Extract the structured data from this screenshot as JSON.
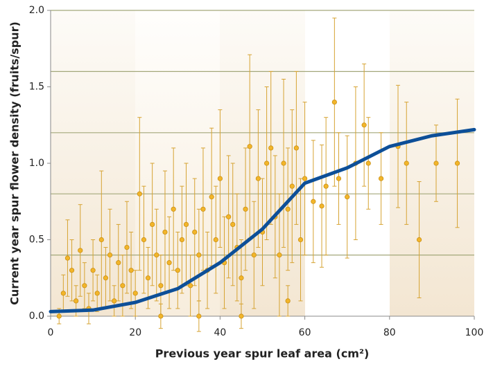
{
  "chart_data": {
    "type": "scatter",
    "xlabel": "Previous year spur leaf area (cm²)",
    "ylabel": "Current year spur flower density (fruits/spur)",
    "xlim": [
      0,
      100
    ],
    "ylim": [
      0,
      2
    ],
    "xticks": [
      0,
      20,
      40,
      60,
      80,
      100
    ],
    "yticks": [
      {
        "value": 0,
        "label": "0.0"
      },
      0.5,
      {
        "value": 1,
        "label": "1.0"
      },
      1.5,
      {
        "value": 2,
        "label": "2.0"
      }
    ],
    "gridlines": [
      0.4,
      0.8,
      1.2,
      1.6,
      2
    ],
    "series": [
      {
        "color": "#f2b52a",
        "x": [
          2,
          3,
          4,
          5,
          6,
          7,
          8,
          9,
          10,
          11,
          12,
          13,
          14,
          15,
          16,
          17,
          18,
          19,
          20,
          21,
          22,
          23,
          24,
          25,
          26,
          26,
          27,
          28,
          29,
          30,
          31,
          32,
          33,
          34,
          35,
          35,
          36,
          37,
          38,
          39,
          40,
          41,
          42,
          43,
          44,
          45,
          45,
          46,
          47,
          48,
          49,
          50,
          51,
          52,
          53,
          54,
          55,
          56,
          56,
          57,
          58,
          59,
          60,
          62,
          64,
          65,
          67,
          68,
          70,
          72,
          74,
          75,
          78,
          82,
          84,
          87,
          91,
          96
        ],
        "values": [
          0.0,
          0.15,
          0.38,
          0.3,
          0.1,
          0.43,
          0.2,
          0.05,
          0.3,
          0.15,
          0.5,
          0.25,
          0.4,
          0.1,
          0.35,
          0.2,
          0.45,
          0.3,
          0.15,
          0.8,
          0.5,
          0.25,
          0.6,
          0.4,
          0.2,
          0.0,
          0.55,
          0.35,
          0.7,
          0.3,
          0.5,
          0.6,
          0.2,
          0.55,
          0.4,
          0.0,
          0.7,
          0.3,
          0.78,
          0.5,
          0.9,
          0.35,
          0.65,
          0.6,
          0.45,
          0.25,
          0.0,
          0.7,
          1.11,
          0.4,
          0.9,
          0.55,
          1.0,
          1.1,
          0.65,
          0.4,
          1.0,
          0.7,
          0.1,
          0.85,
          1.1,
          0.5,
          0.9,
          0.75,
          0.72,
          0.85,
          1.4,
          0.9,
          0.78,
          1.0,
          1.25,
          1.0,
          0.9,
          1.11,
          1.0,
          0.5,
          1.0,
          1.0
        ],
        "errors": [
          0.05,
          0.12,
          0.25,
          0.2,
          0.1,
          0.3,
          0.15,
          0.1,
          0.2,
          0.12,
          0.45,
          0.2,
          0.3,
          0.1,
          0.25,
          0.2,
          0.3,
          0.25,
          0.15,
          0.5,
          0.35,
          0.2,
          0.4,
          0.3,
          0.2,
          0.08,
          0.4,
          0.3,
          0.4,
          0.25,
          0.35,
          0.4,
          0.2,
          0.35,
          0.3,
          0.1,
          0.4,
          0.25,
          0.45,
          0.35,
          0.45,
          0.3,
          0.4,
          0.4,
          0.35,
          0.25,
          0.08,
          0.4,
          0.6,
          0.35,
          0.45,
          0.35,
          0.5,
          0.5,
          0.4,
          0.4,
          0.55,
          0.4,
          0.1,
          0.5,
          0.5,
          0.4,
          0.5,
          0.4,
          0.4,
          0.45,
          0.55,
          0.3,
          0.4,
          0.5,
          0.4,
          0.3,
          0.3,
          0.4,
          0.4,
          0.38,
          0.25,
          0.42
        ]
      },
      {
        "color": "#0d4f98",
        "style": "line",
        "x": [
          0,
          10,
          20,
          30,
          40,
          50,
          60,
          70,
          80,
          90,
          100
        ],
        "values": [
          0.03,
          0.04,
          0.09,
          0.18,
          0.35,
          0.57,
          0.87,
          0.97,
          1.11,
          1.18,
          1.22
        ]
      }
    ]
  }
}
